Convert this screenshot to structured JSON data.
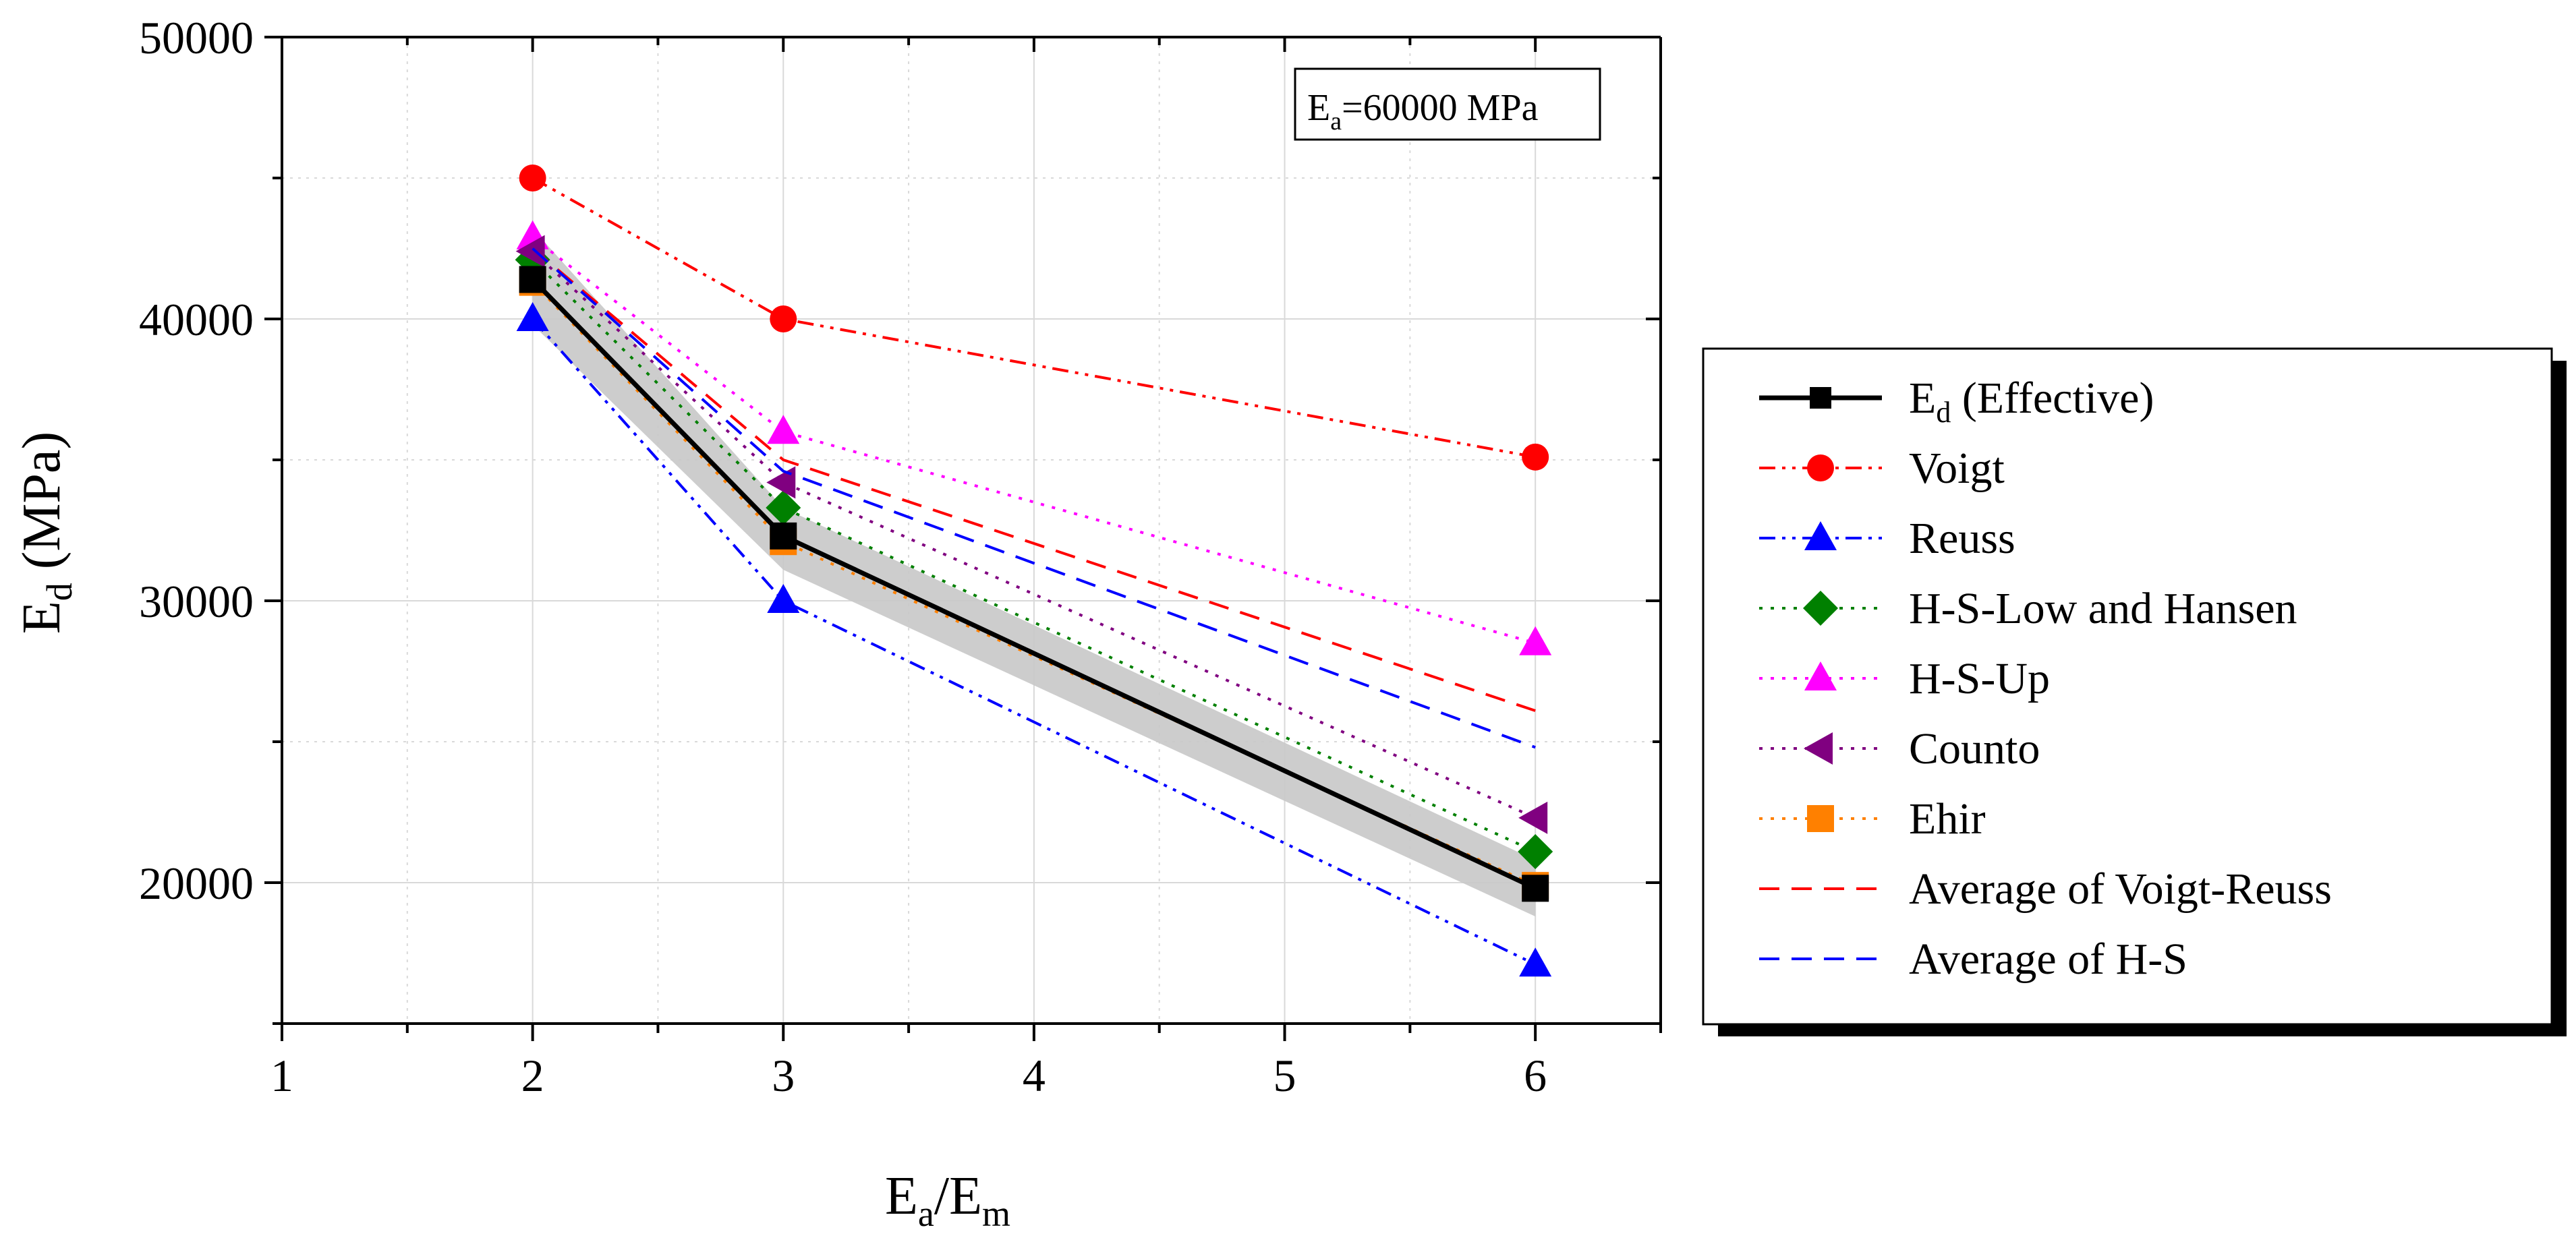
{
  "chart_data": {
    "type": "line",
    "xlabel": {
      "main": "E",
      "sub1": "a",
      "mid": "/E",
      "sub2": "m"
    },
    "ylabel": {
      "main": "E",
      "sub": "d",
      "rest": " (MPa)"
    },
    "annotation": {
      "main": "E",
      "sub": "a",
      "rest": "=60000 MPa"
    },
    "xlim": [
      1,
      6.5
    ],
    "ylim": [
      15000,
      50000
    ],
    "xticks": [
      1,
      2,
      3,
      4,
      5,
      6
    ],
    "yticks": [
      20000,
      30000,
      40000,
      50000
    ],
    "xtick_labels": [
      "1",
      "2",
      "3",
      "4",
      "5",
      "6"
    ],
    "ytick_labels": [
      "20000",
      "30000",
      "40000",
      "50000"
    ],
    "grid": true,
    "legend_position": "right",
    "band": {
      "x": [
        2,
        3,
        6
      ],
      "upper": [
        43200,
        33300,
        20800
      ],
      "lower": [
        39800,
        31100,
        18800
      ],
      "color": "#c8c8c8"
    },
    "series": [
      {
        "name_main": "E",
        "name_sub": "d",
        "name_rest": " (Effective)",
        "x": [
          2,
          3,
          6
        ],
        "y": [
          41400,
          32300,
          19800
        ],
        "color": "#000000",
        "line": "solid",
        "marker": "square"
      },
      {
        "name_main": "Voigt",
        "x": [
          2,
          3,
          6
        ],
        "y": [
          45000,
          40000,
          35100
        ],
        "color": "#ff0000",
        "line": "dashdotdot",
        "marker": "circle"
      },
      {
        "name_main": "Reuss",
        "x": [
          2,
          3,
          6
        ],
        "y": [
          40000,
          30000,
          17100
        ],
        "color": "#0000ff",
        "line": "dashdotdot",
        "marker": "triangle-up"
      },
      {
        "name_main": "H-S-Low and Hansen",
        "x": [
          2,
          3,
          6
        ],
        "y": [
          42100,
          33300,
          21100
        ],
        "color": "#008000",
        "line": "dotted",
        "marker": "diamond"
      },
      {
        "name_main": "H-S-Up",
        "x": [
          2,
          3,
          6
        ],
        "y": [
          42900,
          36000,
          28500
        ],
        "color": "#ff00ff",
        "line": "dotted",
        "marker": "triangle-up"
      },
      {
        "name_main": "Counto",
        "x": [
          2,
          3,
          6
        ],
        "y": [
          42400,
          34200,
          22300
        ],
        "color": "#800080",
        "line": "dotted",
        "marker": "triangle-left"
      },
      {
        "name_main": "Ehir",
        "x": [
          2,
          3,
          6
        ],
        "y": [
          41300,
          32100,
          19900
        ],
        "color": "#ff8000",
        "line": "dotted",
        "marker": "square"
      },
      {
        "name_main": "Average of Voigt-Reuss",
        "x": [
          2,
          3,
          6
        ],
        "y": [
          42500,
          35000,
          26100
        ],
        "color": "#ff0000",
        "line": "dashed",
        "marker": "none"
      },
      {
        "name_main": "Average of H-S",
        "x": [
          2,
          3,
          6
        ],
        "y": [
          42500,
          34600,
          24800
        ],
        "color": "#0000ff",
        "line": "dashed",
        "marker": "none"
      }
    ]
  }
}
